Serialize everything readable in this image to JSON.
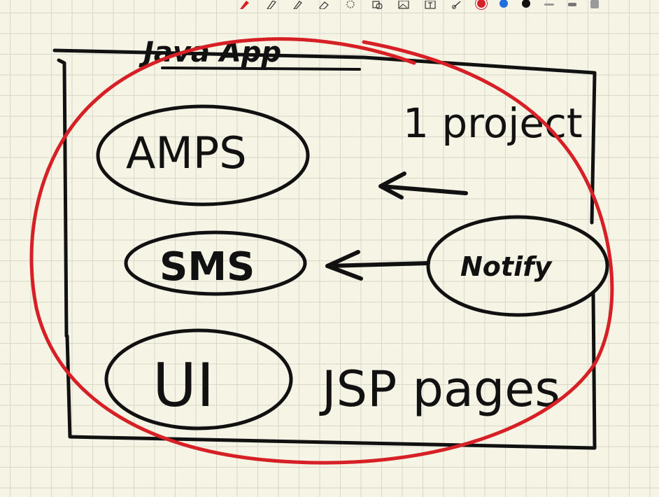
{
  "toolbar": {
    "tools": [
      "pen-tool-icon",
      "highlighter-tool-icon",
      "pencil-tool-icon",
      "eraser-tool-icon",
      "lasso-tool-icon",
      "shapes-tool-icon",
      "image-tool-icon",
      "text-tool-icon",
      "link-tool-icon"
    ],
    "colors": {
      "red": "#d71f26",
      "blue": "#1f6fe0",
      "black": "#111111",
      "gray": "#9a9a9a"
    }
  },
  "note": {
    "title": "Java App",
    "modules": [
      "AMPS",
      "SMS",
      "UI"
    ],
    "side_module": "Notify",
    "project_label": "1 project",
    "ui_caption": "JSP pages"
  }
}
